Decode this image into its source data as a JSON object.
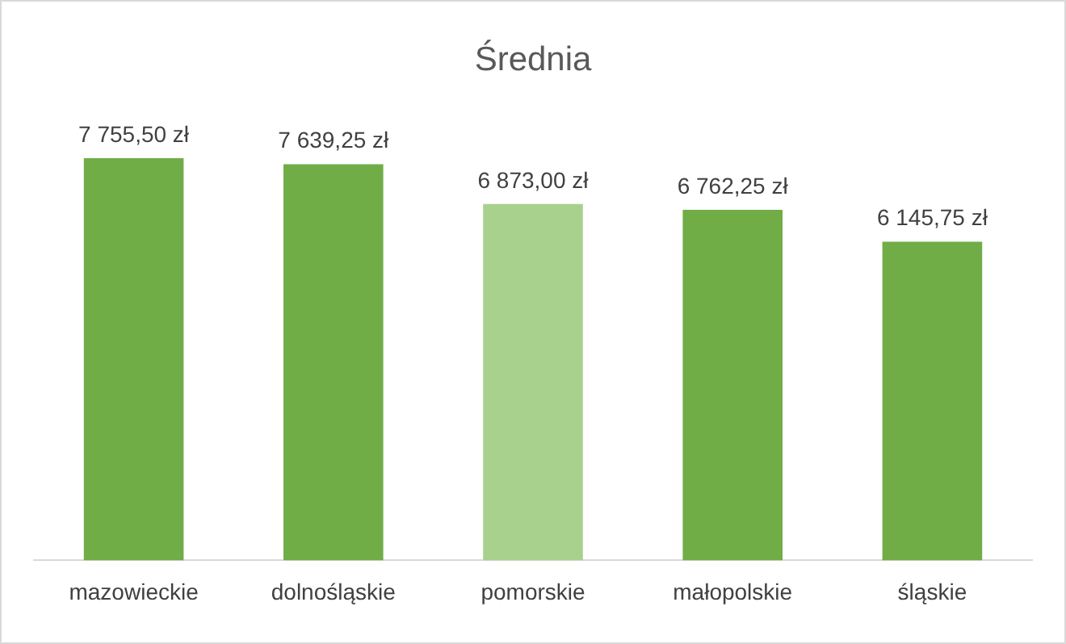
{
  "chart_data": {
    "type": "bar",
    "title": "Średnia",
    "categories": [
      "mazowieckie",
      "dolnośląskie",
      "pomorskie",
      "małopolskie",
      "śląskie"
    ],
    "values": [
      7755.5,
      7639.25,
      6873,
      6762.25,
      6145.75
    ],
    "colors": [
      "#70ad47",
      "#70ad47",
      "#a9d18e",
      "#70ad47",
      "#70ad47"
    ],
    "value_labels": [
      "7 755,50 zł",
      "7 639,25 zł",
      "6 873,00 zł",
      "6 762,25 zł",
      "6 145,75 zł"
    ],
    "grid": false,
    "legend": false
  }
}
